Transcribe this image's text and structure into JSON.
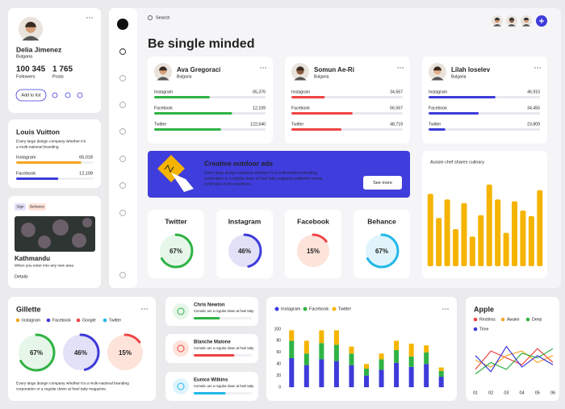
{
  "search": {
    "placeholder": "Search"
  },
  "heading": "Be single minded",
  "profile": {
    "name": "Delia Jimenez",
    "location": "Bulgaria",
    "followers": "100 345",
    "followers_label": "Followers",
    "posts": "1 765",
    "posts_label": "Posts",
    "button": "Add to list"
  },
  "brand": {
    "name": "Louis Vuitton",
    "description": [
      "Every large design company whether it's",
      "a multi-national branding"
    ],
    "stats": [
      {
        "label": "Instagram",
        "value": "65,018",
        "progress": 85,
        "color": "#f5a623"
      },
      {
        "label": "Facebook",
        "value": "12,109",
        "progress": 55,
        "color": "#3d3bd9"
      }
    ]
  },
  "place": {
    "tags": [
      "Sign",
      "Behance"
    ],
    "title": "Kathmandu",
    "description": "When you enter into any new area",
    "link": "Details"
  },
  "influencers": [
    {
      "name": "Ava Gregoraci",
      "location": "Bulgaria",
      "color": "#2fb344",
      "stats": [
        {
          "label": "Instagram",
          "value": "65,376",
          "progress": 50
        },
        {
          "label": "Facebook",
          "value": "12,109",
          "progress": 70
        },
        {
          "label": "Twitter",
          "value": "122,640",
          "progress": 60
        }
      ]
    },
    {
      "name": "Somun Ae-Ri",
      "location": "Bulgaria",
      "color": "#ef4444",
      "stats": [
        {
          "label": "Instagram",
          "value": "34,567",
          "progress": 30
        },
        {
          "label": "Facebook",
          "value": "56,567",
          "progress": 55
        },
        {
          "label": "Twitter",
          "value": "48,719",
          "progress": 45
        }
      ]
    },
    {
      "name": "Lilah Ioselev",
      "location": "Bulgaria",
      "color": "#3d3bd9",
      "stats": [
        {
          "label": "Instagram",
          "value": "46,910",
          "progress": 60
        },
        {
          "label": "Facebook",
          "value": "34,455",
          "progress": 45
        },
        {
          "label": "Twitter",
          "value": "23,809",
          "progress": 15
        }
      ]
    }
  ],
  "banner": {
    "title": "Creative outdoor ads",
    "text": [
      "Every large design company whether it's a multi-national branding",
      "corporation or a regular down at heel tatty magazine publisher needs",
      "to fill holes in the workforce."
    ],
    "button": "See more"
  },
  "socials": [
    {
      "name": "Twitter",
      "value": 67,
      "value_label": "67%",
      "color": "#2fb344",
      "bg": "#e6f6e9"
    },
    {
      "name": "Instagram",
      "value": 46,
      "value_label": "46%",
      "color": "#3d3bd9",
      "bg": "#e2e1f8"
    },
    {
      "name": "Facebook",
      "value": 15,
      "value_label": "15%",
      "color": "#ef4444",
      "bg": "#fde3da"
    },
    {
      "name": "Behance",
      "value": 67,
      "value_label": "67%",
      "color": "#22b8e8",
      "bg": "#dff4fb"
    }
  ],
  "aussie": {
    "type": "bar",
    "title": "Aussie chef shares culinary",
    "values": [
      78,
      52,
      72,
      40,
      68,
      32,
      55,
      88,
      72,
      36,
      70,
      60,
      54,
      82
    ],
    "color": "#f5b400",
    "ylim": [
      0,
      100
    ]
  },
  "gillette": {
    "title": "Gillette",
    "legend": [
      {
        "name": "Instagram",
        "color": "#f5a623"
      },
      {
        "name": "Facebook",
        "color": "#3d3bd9"
      },
      {
        "name": "Google",
        "color": "#ef4444"
      },
      {
        "name": "Twitter",
        "color": "#22b8e8"
      }
    ],
    "gauges": [
      {
        "value": 67,
        "value_label": "67%",
        "color": "#2fb344",
        "bg": "#e6f6e9"
      },
      {
        "value": 46,
        "value_label": "46%",
        "color": "#3d3bd9",
        "bg": "#e2e1f8"
      },
      {
        "value": 15,
        "value_label": "15%",
        "color": "#ef4444",
        "bg": "#fde3da"
      }
    ],
    "description": [
      "Every large design company whether it's a multi-national branding",
      "corporation or a regular down at heel tatty magazine."
    ]
  },
  "contacts": [
    {
      "name": "Chris Newton",
      "text": "Cometic are a regular down at heel tatty",
      "progress": 45,
      "color": "#2fb344",
      "bg": "#e6f6e9"
    },
    {
      "name": "Blanche Malone",
      "text": "Cometic are a regular down at heel tatty",
      "progress": 70,
      "color": "#ef4444",
      "bg": "#fde3da"
    },
    {
      "name": "Eunice Wilkins",
      "text": "Cometic are a regular down at heel tatty",
      "progress": 55,
      "color": "#22b8e8",
      "bg": "#dff4fb"
    }
  ],
  "stacked": {
    "type": "bar",
    "ylim": [
      0,
      100
    ],
    "yticks": [
      0,
      20,
      40,
      60,
      80,
      100
    ],
    "series": [
      {
        "name": "Instagram",
        "color": "#3d3bd9",
        "values": [
          50,
          38,
          48,
          45,
          38,
          20,
          30,
          42,
          35,
          40,
          18
        ]
      },
      {
        "name": "Facebook",
        "color": "#2fb344",
        "values": [
          30,
          20,
          28,
          28,
          20,
          12,
          18,
          22,
          18,
          20,
          10
        ]
      },
      {
        "name": "Twitter",
        "color": "#f5b400",
        "values": [
          18,
          22,
          22,
          25,
          12,
          8,
          10,
          16,
          22,
          12,
          6
        ]
      }
    ]
  },
  "apple": {
    "type": "line",
    "title": "Apple",
    "categories": [
      "01",
      "02",
      "03",
      "04",
      "05",
      "06"
    ],
    "ylim": [
      0,
      100
    ],
    "series": [
      {
        "name": "Restless",
        "color": "#ef4444",
        "values": [
          30,
          70,
          55,
          40,
          75,
          45
        ]
      },
      {
        "name": "Awake",
        "color": "#f5a623",
        "values": [
          50,
          35,
          60,
          70,
          45,
          60
        ]
      },
      {
        "name": "Deep",
        "color": "#2fb344",
        "values": [
          20,
          45,
          30,
          65,
          55,
          75
        ]
      },
      {
        "name": "Time",
        "color": "#3d3bd9",
        "values": [
          60,
          25,
          80,
          35,
          60,
          40
        ]
      }
    ]
  }
}
